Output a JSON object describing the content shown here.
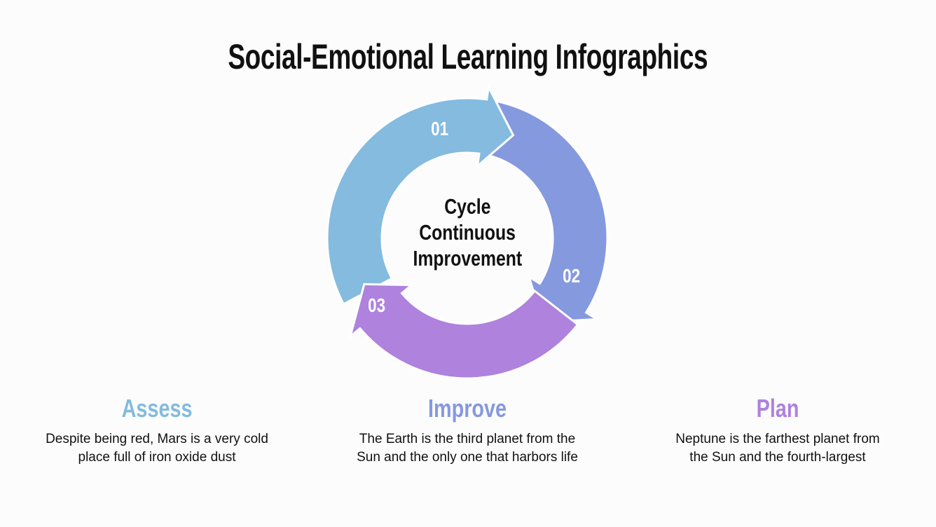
{
  "title": "Social-Emotional Learning Infographics",
  "center_label": [
    "Cycle",
    "Continuous",
    "Improvement"
  ],
  "colors": {
    "assess": "#84bbdf",
    "improve": "#8599df",
    "plan": "#ae82dd"
  },
  "steps": [
    {
      "number": "01",
      "heading": "Assess",
      "text": "Despite being red, Mars is a very cold place full of iron oxide dust",
      "color": "#84bbdf"
    },
    {
      "number": "02",
      "heading": "Improve",
      "text": "The Earth is the third planet from the Sun and the only one that harbors life",
      "color": "#8599df"
    },
    {
      "number": "03",
      "heading": "Plan",
      "text": "Neptune is the farthest planet from the Sun and the fourth-largest",
      "color": "#ae82dd"
    }
  ]
}
